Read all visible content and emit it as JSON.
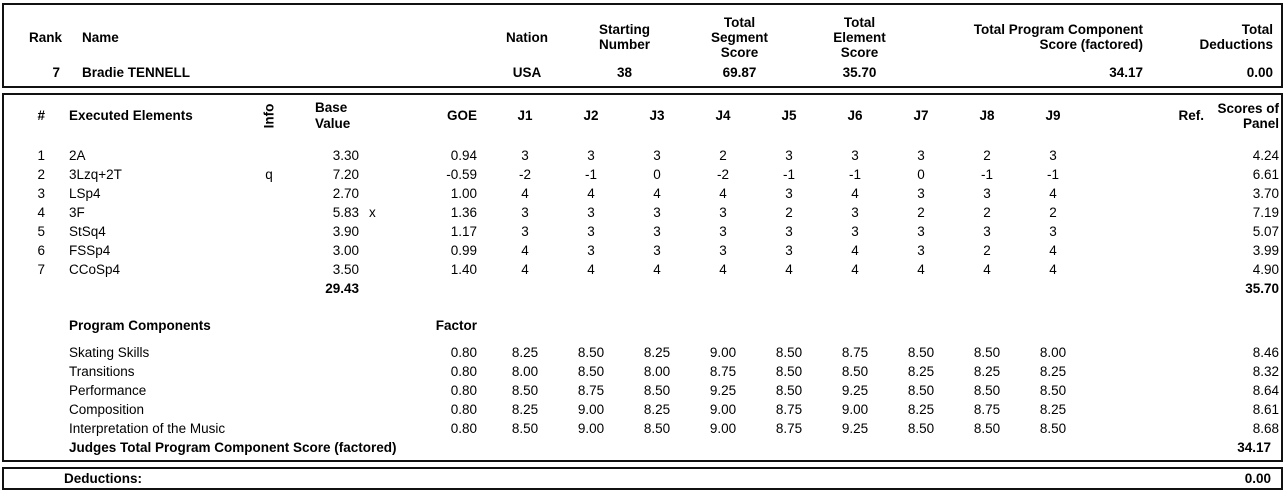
{
  "summary": {
    "headers": {
      "rank": "Rank",
      "name": "Name",
      "nation": "Nation",
      "starting_number": "Starting\nNumber",
      "segment_score": "Total\nSegment\nScore",
      "element_score": "Total\nElement\nScore",
      "pcs_factored": "Total Program Component\nScore (factored)",
      "deductions": "Total\nDeductions"
    },
    "row": {
      "rank": "7",
      "name": "Bradie TENNELL",
      "nation": "USA",
      "starting_number": "38",
      "segment_score": "69.87",
      "element_score": "35.70",
      "pcs_factored": "34.17",
      "deductions": "0.00"
    }
  },
  "elements": {
    "headers": {
      "num": "#",
      "name": "Executed Elements",
      "info": "Info",
      "base_value": "Base\nValue",
      "goe": "GOE",
      "judges": [
        "J1",
        "J2",
        "J3",
        "J4",
        "J5",
        "J6",
        "J7",
        "J8",
        "J9"
      ],
      "ref": "Ref.",
      "panel": "Scores of\nPanel"
    },
    "rows": [
      {
        "num": "1",
        "name": "2A",
        "info": "",
        "base": "3.30",
        "x": "",
        "goe": "0.94",
        "j": [
          "3",
          "3",
          "3",
          "2",
          "3",
          "3",
          "3",
          "2",
          "3"
        ],
        "panel": "4.24"
      },
      {
        "num": "2",
        "name": "3Lzq+2T",
        "info": "q",
        "base": "7.20",
        "x": "",
        "goe": "-0.59",
        "j": [
          "-2",
          "-1",
          "0",
          "-2",
          "-1",
          "-1",
          "0",
          "-1",
          "-1"
        ],
        "panel": "6.61"
      },
      {
        "num": "3",
        "name": "LSp4",
        "info": "",
        "base": "2.70",
        "x": "",
        "goe": "1.00",
        "j": [
          "4",
          "4",
          "4",
          "4",
          "3",
          "4",
          "3",
          "3",
          "4"
        ],
        "panel": "3.70"
      },
      {
        "num": "4",
        "name": "3F",
        "info": "",
        "base": "5.83",
        "x": "x",
        "goe": "1.36",
        "j": [
          "3",
          "3",
          "3",
          "3",
          "2",
          "3",
          "2",
          "2",
          "2"
        ],
        "panel": "7.19"
      },
      {
        "num": "5",
        "name": "StSq4",
        "info": "",
        "base": "3.90",
        "x": "",
        "goe": "1.17",
        "j": [
          "3",
          "3",
          "3",
          "3",
          "3",
          "3",
          "3",
          "3",
          "3"
        ],
        "panel": "5.07"
      },
      {
        "num": "6",
        "name": "FSSp4",
        "info": "",
        "base": "3.00",
        "x": "",
        "goe": "0.99",
        "j": [
          "4",
          "3",
          "3",
          "3",
          "3",
          "4",
          "3",
          "2",
          "4"
        ],
        "panel": "3.99"
      },
      {
        "num": "7",
        "name": "CCoSp4",
        "info": "",
        "base": "3.50",
        "x": "",
        "goe": "1.40",
        "j": [
          "4",
          "4",
          "4",
          "4",
          "4",
          "4",
          "4",
          "4",
          "4"
        ],
        "panel": "4.90"
      }
    ],
    "total_base": "29.43",
    "total_panel": "35.70"
  },
  "components": {
    "title": "Program Components",
    "factor_header": "Factor",
    "rows": [
      {
        "name": "Skating Skills",
        "factor": "0.80",
        "j": [
          "8.25",
          "8.50",
          "8.25",
          "9.00",
          "8.50",
          "8.75",
          "8.50",
          "8.50",
          "8.00"
        ],
        "panel": "8.46"
      },
      {
        "name": "Transitions",
        "factor": "0.80",
        "j": [
          "8.00",
          "8.50",
          "8.00",
          "8.75",
          "8.50",
          "8.50",
          "8.25",
          "8.25",
          "8.25"
        ],
        "panel": "8.32"
      },
      {
        "name": "Performance",
        "factor": "0.80",
        "j": [
          "8.50",
          "8.75",
          "8.50",
          "9.25",
          "8.50",
          "9.25",
          "8.50",
          "8.50",
          "8.50"
        ],
        "panel": "8.64"
      },
      {
        "name": "Composition",
        "factor": "0.80",
        "j": [
          "8.25",
          "9.00",
          "8.25",
          "9.00",
          "8.75",
          "9.00",
          "8.25",
          "8.75",
          "8.25"
        ],
        "panel": "8.61"
      },
      {
        "name": "Interpretation of the Music",
        "factor": "0.80",
        "j": [
          "8.50",
          "9.00",
          "8.50",
          "9.00",
          "8.75",
          "9.25",
          "8.50",
          "8.50",
          "8.50"
        ],
        "panel": "8.68"
      }
    ],
    "total_label": "Judges Total Program Component Score (factored)",
    "total_value": "34.17"
  },
  "deductions": {
    "label": "Deductions:",
    "value": "0.00"
  }
}
